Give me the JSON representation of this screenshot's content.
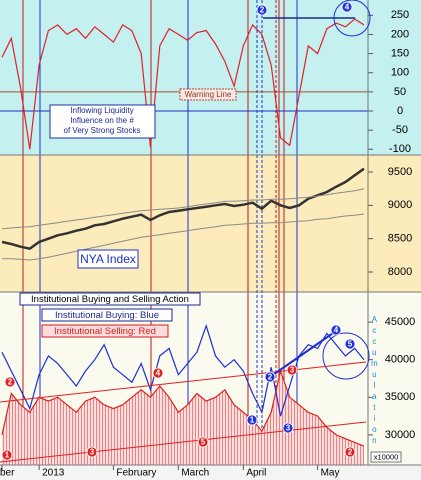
{
  "chart_data": [
    {
      "type": "line",
      "annotations": [
        "Inflowing Liquidity",
        "Influence on the #",
        "of Very Strong Stocks",
        "Warning Line"
      ],
      "series": [
        {
          "color": "#e0202a",
          "values": [
            140,
            190,
            60,
            -100,
            120,
            210,
            225,
            200,
            215,
            190,
            220,
            200,
            180,
            225,
            210,
            150,
            -95,
            170,
            215,
            200,
            185,
            205,
            210,
            175,
            130,
            65,
            170,
            225,
            200,
            120,
            -70,
            -90,
            40,
            170,
            150,
            215,
            230,
            220,
            240,
            225
          ]
        }
      ],
      "reference_lines": [
        {
          "value": 50,
          "color": "#a0522d"
        },
        {
          "value": 0,
          "color": "#2030c0"
        }
      ],
      "markers": [
        {
          "text": "2",
          "color": "#2233dd"
        },
        {
          "text": "4",
          "color": "#2233dd"
        }
      ],
      "ylim": [
        -115,
        290
      ],
      "yticks": [
        -100,
        -50,
        0,
        50,
        100,
        150,
        200,
        250
      ]
    },
    {
      "type": "line",
      "annotations": [
        "NYA Index"
      ],
      "series": [
        {
          "color": "#333333",
          "width": 2.5,
          "values": [
            8450,
            8420,
            8380,
            8350,
            8450,
            8500,
            8550,
            8580,
            8620,
            8650,
            8700,
            8720,
            8760,
            8800,
            8830,
            8860,
            8780,
            8850,
            8900,
            8920,
            8940,
            8960,
            8980,
            9000,
            9020,
            8990,
            9010,
            9040,
            8950,
            9070,
            9000,
            8960,
            9000,
            9100,
            9150,
            9200,
            9280,
            9350,
            9450,
            9550
          ]
        },
        {
          "color": "#8a8a8a",
          "width": 1,
          "values": [
            8650,
            8660,
            8670,
            8680,
            8700,
            8720,
            8740,
            8760,
            8780,
            8800,
            8820,
            8840,
            8860,
            8880,
            8900,
            8920,
            8930,
            8940,
            8950,
            8960,
            8980,
            9000,
            9020,
            9040,
            9060,
            9060,
            9070,
            9080,
            9080,
            9090,
            9090,
            9100,
            9110,
            9120,
            9140,
            9160,
            9180,
            9200,
            9220,
            9250
          ]
        },
        {
          "color": "#8a8a8a",
          "width": 1,
          "values": [
            8200,
            8200,
            8190,
            8180,
            8200,
            8220,
            8250,
            8280,
            8310,
            8340,
            8370,
            8400,
            8430,
            8460,
            8490,
            8520,
            8540,
            8560,
            8580,
            8600,
            8620,
            8640,
            8660,
            8680,
            8700,
            8710,
            8720,
            8730,
            8730,
            8740,
            8740,
            8750,
            8760,
            8770,
            8790,
            8800,
            8820,
            8840,
            8850,
            8870
          ]
        }
      ],
      "ylim": [
        7700,
        9755
      ],
      "yticks": [
        8000,
        8500,
        9000,
        9500
      ]
    },
    {
      "type": "line",
      "annotations": [
        "Institutional Buying and Selling Action",
        "Institutional Buying: Blue",
        "Institutional Selling: Red",
        "Accumulation",
        "x10000"
      ],
      "categories": [
        "ber",
        null,
        null,
        null,
        "2013",
        null,
        null,
        null,
        null,
        null,
        null,
        null,
        "February",
        null,
        null,
        null,
        null,
        null,
        null,
        "March",
        null,
        null,
        null,
        null,
        null,
        null,
        "April",
        null,
        null,
        null,
        null,
        null,
        null,
        null,
        "May",
        null,
        null,
        null,
        null,
        null
      ],
      "series": [
        {
          "color": "#e02020",
          "area": true,
          "values": [
            30000,
            35500,
            34000,
            33000,
            35000,
            34500,
            35000,
            34000,
            33000,
            34500,
            35000,
            34000,
            33500,
            34000,
            35000,
            36000,
            35000,
            36500,
            35000,
            33000,
            34000,
            35500,
            34500,
            35000,
            36000,
            34000,
            33000,
            32000,
            30500,
            33000,
            38500,
            35000,
            34000,
            33000,
            32500,
            31000,
            30000,
            29500,
            29000,
            28500
          ]
        },
        {
          "color": "#1a2fd6",
          "area": false,
          "values": [
            41000,
            38500,
            36000,
            33500,
            38000,
            40500,
            39500,
            38000,
            36500,
            38500,
            40000,
            42000,
            39000,
            38000,
            37000,
            39500,
            36000,
            40500,
            41500,
            38000,
            39500,
            41000,
            44500,
            40500,
            39000,
            40000,
            38500,
            35500,
            33000,
            39000,
            32500,
            36500,
            40500,
            42000,
            41500,
            43500,
            42000,
            40500,
            41500,
            40000
          ]
        }
      ],
      "markers": [
        {
          "text": "2",
          "color": "#e41f1f"
        },
        {
          "text": "1",
          "color": "#e41f1f"
        },
        {
          "text": "3",
          "color": "#e41f1f"
        },
        {
          "text": "4",
          "color": "#e41f1f"
        },
        {
          "text": "5",
          "color": "#e41f1f"
        },
        {
          "text": "3",
          "color": "#e41f1f"
        },
        {
          "text": "2",
          "color": "#e41f1f"
        },
        {
          "text": "1",
          "color": "#2233dd"
        },
        {
          "text": "2",
          "color": "#2233dd"
        },
        {
          "text": "3",
          "color": "#2233dd"
        },
        {
          "text": "4",
          "color": "#2233dd"
        },
        {
          "text": "5",
          "color": "#2233dd"
        }
      ],
      "ylim": [
        26000,
        49000
      ],
      "yticks": [
        30000,
        35000,
        40000,
        45000
      ]
    }
  ]
}
